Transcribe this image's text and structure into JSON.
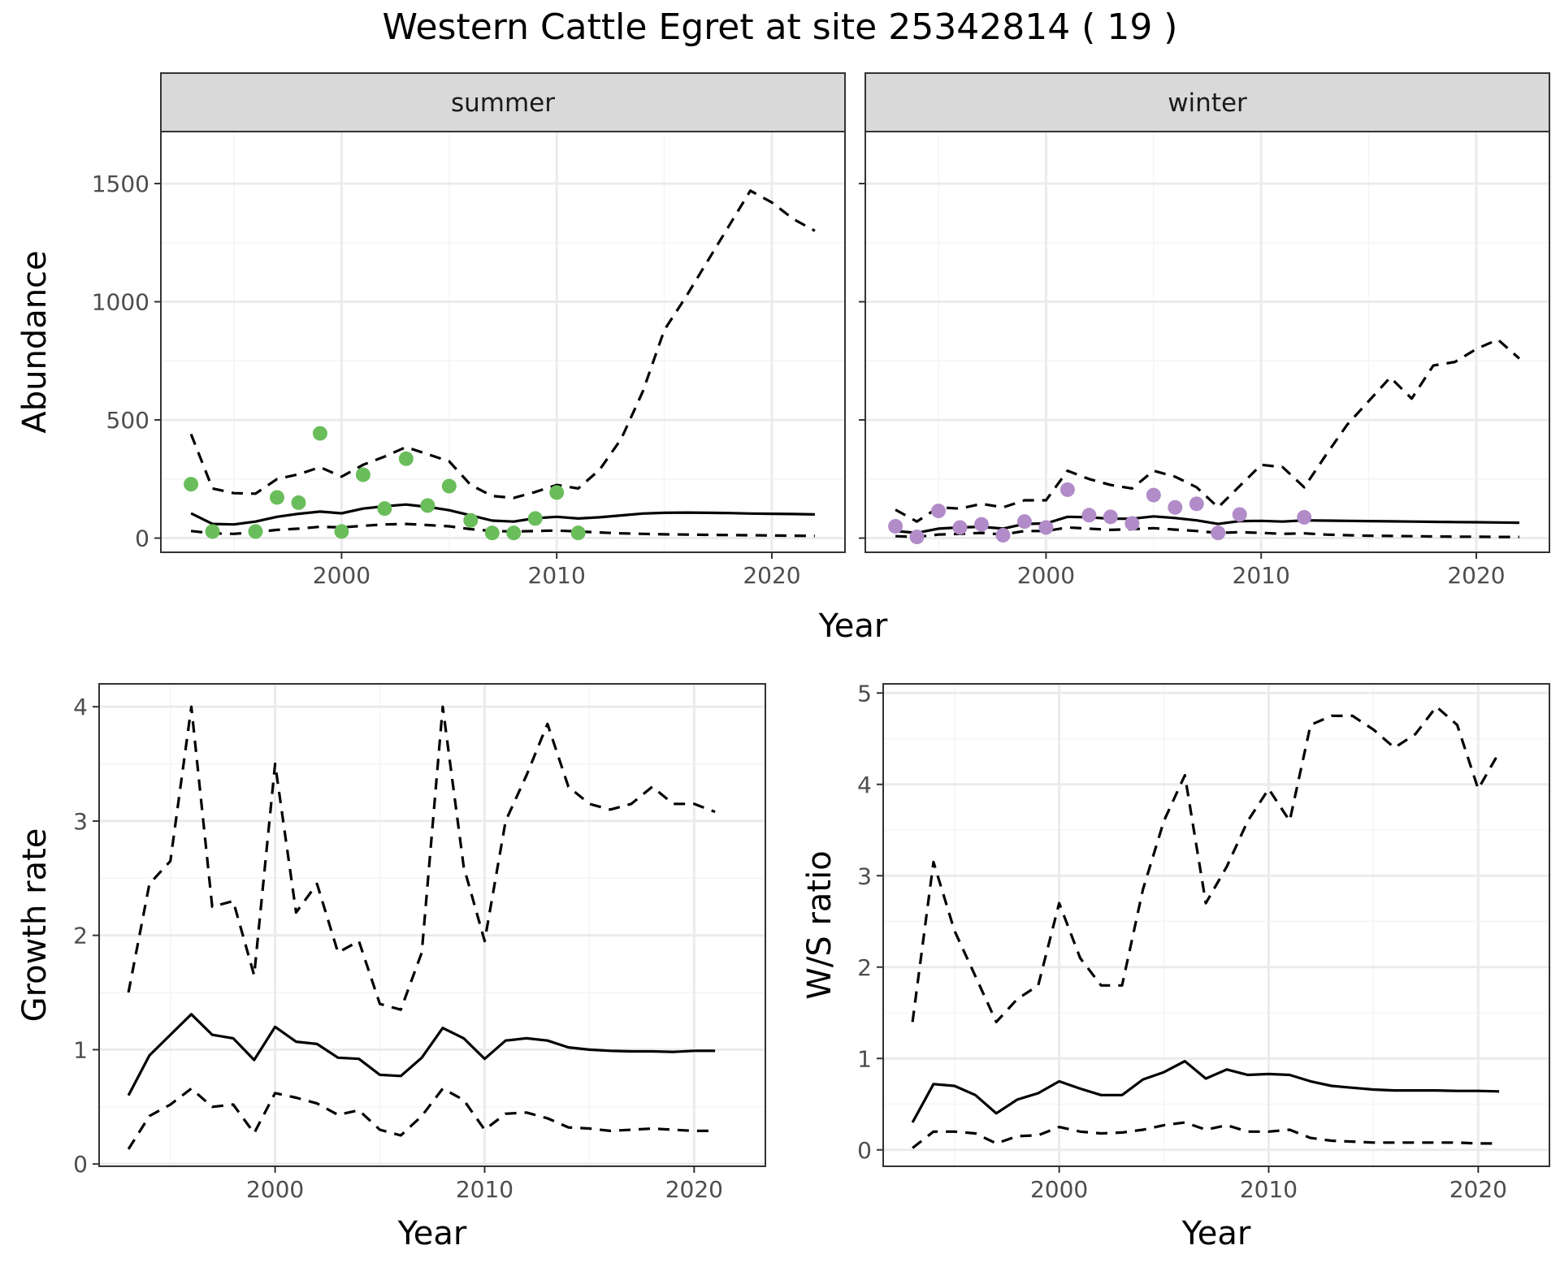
{
  "title": "Western Cattle Egret at site 25342814 ( 19 )",
  "colors": {
    "summer_points": "#6ABD5B",
    "winter_points": "#B18CC9",
    "strip_fill": "#D9D9D9",
    "grid_major": "#EBEBEB",
    "grid_minor": "#F5F5F5",
    "line": "#000000"
  },
  "chart_data": [
    {
      "type": "line",
      "id": "abundance",
      "ylabel": "Abundance",
      "xlabel": "Year",
      "xlim": [
        1991.6,
        2023.4
      ],
      "ylim": [
        -60,
        1720
      ],
      "x_ticks": [
        2000,
        2010,
        2020
      ],
      "y_ticks": [
        0,
        500,
        1000,
        1500
      ],
      "facets": [
        {
          "strip": "summer",
          "points": {
            "x": [
              1993,
              1994,
              1996,
              1997,
              1998,
              1999,
              2000,
              2001,
              2002,
              2003,
              2004,
              2005,
              2006,
              2007,
              2008,
              2009,
              2010,
              2011
            ],
            "y": [
              228,
              28,
              28,
              172,
              150,
              443,
              28,
              268,
              125,
              336,
              138,
              220,
              75,
              22,
              22,
              83,
              193,
              22
            ]
          },
          "series": [
            {
              "role": "mean",
              "dash": "solid",
              "x": [
                1993,
                1994,
                1995,
                1996,
                1997,
                1998,
                1999,
                2000,
                2001,
                2002,
                2003,
                2004,
                2005,
                2006,
                2007,
                2008,
                2009,
                2010,
                2011,
                2012,
                2013,
                2014,
                2015,
                2016,
                2017,
                2018,
                2019,
                2020,
                2021,
                2022
              ],
              "y": [
                105,
                60,
                58,
                70,
                90,
                103,
                112,
                105,
                125,
                135,
                142,
                132,
                118,
                96,
                74,
                70,
                84,
                90,
                83,
                88,
                96,
                104,
                107,
                108,
                107,
                106,
                104,
                103,
                102,
                100
              ]
            },
            {
              "role": "upper",
              "dash": "dashed",
              "x": [
                1993,
                1994,
                1995,
                1996,
                1997,
                1998,
                1999,
                2000,
                2001,
                2002,
                2003,
                2004,
                2005,
                2006,
                2007,
                2008,
                2009,
                2010,
                2011,
                2012,
                2013,
                2014,
                2015,
                2016,
                2017,
                2018,
                2019,
                2020,
                2021,
                2022
              ],
              "y": [
                440,
                210,
                190,
                188,
                250,
                270,
                300,
                260,
                310,
                345,
                385,
                355,
                325,
                225,
                178,
                170,
                195,
                225,
                210,
                290,
                420,
                620,
                880,
                1020,
                1170,
                1320,
                1470,
                1420,
                1350,
                1300
              ]
            },
            {
              "role": "lower",
              "dash": "dashed",
              "x": [
                1993,
                1994,
                1995,
                1996,
                1997,
                1998,
                1999,
                2000,
                2001,
                2002,
                2003,
                2004,
                2005,
                2006,
                2007,
                2008,
                2009,
                2010,
                2011,
                2012,
                2013,
                2014,
                2015,
                2016,
                2017,
                2018,
                2019,
                2020,
                2021,
                2022
              ],
              "y": [
                30,
                20,
                18,
                25,
                35,
                40,
                48,
                45,
                52,
                58,
                60,
                55,
                50,
                38,
                30,
                28,
                30,
                32,
                28,
                24,
                20,
                18,
                16,
                15,
                14,
                13,
                12,
                11,
                10,
                9
              ]
            }
          ]
        },
        {
          "strip": "winter",
          "points": {
            "x": [
              1993,
              1994,
              1995,
              1996,
              1997,
              1998,
              1999,
              2000,
              2001,
              2002,
              2003,
              2004,
              2005,
              2006,
              2007,
              2008,
              2009,
              2012
            ],
            "y": [
              50,
              5,
              115,
              45,
              58,
              12,
              70,
              45,
              205,
              97,
              90,
              62,
              182,
              130,
              145,
              22,
              100,
              88
            ]
          },
          "series": [
            {
              "role": "mean",
              "dash": "solid",
              "x": [
                1993,
                1994,
                1995,
                1996,
                1997,
                1998,
                1999,
                2000,
                2001,
                2002,
                2003,
                2004,
                2005,
                2006,
                2007,
                2008,
                2009,
                2010,
                2011,
                2012,
                2013,
                2014,
                2015,
                2016,
                2017,
                2018,
                2019,
                2020,
                2021,
                2022
              ],
              "y": [
                30,
                22,
                40,
                45,
                48,
                40,
                60,
                62,
                90,
                88,
                82,
                82,
                92,
                85,
                75,
                60,
                72,
                73,
                70,
                75,
                74,
                73,
                72,
                71,
                70,
                69,
                68,
                67,
                66,
                65
              ]
            },
            {
              "role": "upper",
              "dash": "dashed",
              "x": [
                1993,
                1994,
                1995,
                1996,
                1997,
                1998,
                1999,
                2000,
                2001,
                2002,
                2003,
                2004,
                2005,
                2006,
                2007,
                2008,
                2009,
                2010,
                2011,
                2012,
                2013,
                2014,
                2015,
                2016,
                2017,
                2018,
                2019,
                2020,
                2021,
                2022
              ],
              "y": [
                120,
                70,
                130,
                125,
                145,
                130,
                160,
                160,
                285,
                250,
                225,
                210,
                285,
                260,
                215,
                130,
                220,
                310,
                300,
                215,
                350,
                480,
                580,
                680,
                590,
                730,
                745,
                800,
                840,
                760
              ]
            },
            {
              "role": "lower",
              "dash": "dashed",
              "x": [
                1993,
                1994,
                1995,
                1996,
                1997,
                1998,
                1999,
                2000,
                2001,
                2002,
                2003,
                2004,
                2005,
                2006,
                2007,
                2008,
                2009,
                2010,
                2011,
                2012,
                2013,
                2014,
                2015,
                2016,
                2017,
                2018,
                2019,
                2020,
                2021,
                2022
              ],
              "y": [
                8,
                5,
                15,
                18,
                22,
                15,
                30,
                30,
                45,
                40,
                35,
                38,
                42,
                36,
                30,
                22,
                25,
                22,
                18,
                20,
                15,
                12,
                10,
                9,
                8,
                7,
                6,
                6,
                5,
                5
              ]
            }
          ]
        }
      ]
    },
    {
      "type": "line",
      "id": "growth",
      "ylabel": "Growth rate",
      "xlabel": "Year",
      "xlim": [
        1991.6,
        2023.4
      ],
      "ylim": [
        -0.02,
        4.2
      ],
      "x_ticks": [
        2000,
        2010,
        2020
      ],
      "y_ticks": [
        0,
        1,
        2,
        3,
        4
      ],
      "series": [
        {
          "role": "mean",
          "dash": "solid",
          "x": [
            1993,
            1994,
            1995,
            1996,
            1997,
            1998,
            1999,
            2000,
            2001,
            2002,
            2003,
            2004,
            2005,
            2006,
            2007,
            2008,
            2009,
            2010,
            2011,
            2012,
            2013,
            2014,
            2015,
            2016,
            2017,
            2018,
            2019,
            2020,
            2021
          ],
          "y": [
            0.6,
            0.95,
            1.13,
            1.31,
            1.13,
            1.1,
            0.91,
            1.2,
            1.07,
            1.05,
            0.93,
            0.92,
            0.78,
            0.77,
            0.93,
            1.19,
            1.1,
            0.92,
            1.08,
            1.1,
            1.08,
            1.02,
            1.0,
            0.99,
            0.985,
            0.985,
            0.98,
            0.99,
            0.99
          ]
        },
        {
          "role": "upper",
          "dash": "dashed",
          "x": [
            1993,
            1994,
            1995,
            1996,
            1997,
            1998,
            1999,
            2000,
            2001,
            2002,
            2003,
            2004,
            2005,
            2006,
            2007,
            2008,
            2009,
            2010,
            2011,
            2012,
            2013,
            2014,
            2015,
            2016,
            2017,
            2018,
            2019,
            2020,
            2021
          ],
          "y": [
            1.5,
            2.45,
            2.65,
            4.0,
            2.25,
            2.3,
            1.65,
            3.5,
            2.2,
            2.45,
            1.85,
            1.95,
            1.4,
            1.35,
            1.85,
            4.0,
            2.6,
            1.95,
            3.0,
            3.4,
            3.85,
            3.3,
            3.15,
            3.1,
            3.15,
            3.3,
            3.15,
            3.15,
            3.08
          ]
        },
        {
          "role": "lower",
          "dash": "dashed",
          "x": [
            1993,
            1994,
            1995,
            1996,
            1997,
            1998,
            1999,
            2000,
            2001,
            2002,
            2003,
            2004,
            2005,
            2006,
            2007,
            2008,
            2009,
            2010,
            2011,
            2012,
            2013,
            2014,
            2015,
            2016,
            2017,
            2018,
            2019,
            2020,
            2021
          ],
          "y": [
            0.13,
            0.42,
            0.52,
            0.66,
            0.5,
            0.52,
            0.27,
            0.62,
            0.58,
            0.53,
            0.43,
            0.47,
            0.3,
            0.25,
            0.42,
            0.66,
            0.56,
            0.3,
            0.44,
            0.45,
            0.4,
            0.32,
            0.31,
            0.29,
            0.3,
            0.31,
            0.3,
            0.29,
            0.29
          ]
        }
      ]
    },
    {
      "type": "line",
      "id": "ws_ratio",
      "ylabel": "W/S ratio",
      "xlabel": "Year",
      "xlim": [
        1991.6,
        2023.4
      ],
      "ylim": [
        -0.18,
        5.1
      ],
      "x_ticks": [
        2000,
        2010,
        2020
      ],
      "y_ticks": [
        0,
        1,
        2,
        3,
        4,
        5
      ],
      "series": [
        {
          "role": "mean",
          "dash": "solid",
          "x": [
            1993,
            1994,
            1995,
            1996,
            1997,
            1998,
            1999,
            2000,
            2001,
            2002,
            2003,
            2004,
            2005,
            2006,
            2007,
            2008,
            2009,
            2010,
            2011,
            2012,
            2013,
            2014,
            2015,
            2016,
            2017,
            2018,
            2019,
            2020,
            2021
          ],
          "y": [
            0.3,
            0.72,
            0.7,
            0.6,
            0.4,
            0.55,
            0.62,
            0.75,
            0.67,
            0.6,
            0.6,
            0.77,
            0.85,
            0.97,
            0.78,
            0.88,
            0.82,
            0.83,
            0.82,
            0.75,
            0.7,
            0.68,
            0.66,
            0.65,
            0.65,
            0.65,
            0.645,
            0.645,
            0.64
          ]
        },
        {
          "role": "upper",
          "dash": "dashed",
          "x": [
            1993,
            1994,
            1995,
            1996,
            1997,
            1998,
            1999,
            2000,
            2001,
            2002,
            2003,
            2004,
            2005,
            2006,
            2007,
            2008,
            2009,
            2010,
            2011,
            2012,
            2013,
            2014,
            2015,
            2016,
            2017,
            2018,
            2019,
            2020,
            2021
          ],
          "y": [
            1.4,
            3.15,
            2.4,
            1.9,
            1.4,
            1.65,
            1.8,
            2.7,
            2.1,
            1.8,
            1.8,
            2.85,
            3.6,
            4.1,
            2.7,
            3.1,
            3.6,
            3.95,
            3.6,
            4.65,
            4.75,
            4.75,
            4.6,
            4.4,
            4.55,
            4.85,
            4.65,
            3.95,
            4.35
          ]
        },
        {
          "role": "lower",
          "dash": "dashed",
          "x": [
            1993,
            1994,
            1995,
            1996,
            1997,
            1998,
            1999,
            2000,
            2001,
            2002,
            2003,
            2004,
            2005,
            2006,
            2007,
            2008,
            2009,
            2010,
            2011,
            2012,
            2013,
            2014,
            2015,
            2016,
            2017,
            2018,
            2019,
            2020,
            2021
          ],
          "y": [
            0.02,
            0.2,
            0.2,
            0.18,
            0.07,
            0.15,
            0.16,
            0.25,
            0.2,
            0.18,
            0.19,
            0.22,
            0.27,
            0.3,
            0.22,
            0.27,
            0.2,
            0.2,
            0.22,
            0.13,
            0.1,
            0.09,
            0.08,
            0.08,
            0.08,
            0.08,
            0.08,
            0.07,
            0.07
          ]
        }
      ]
    }
  ]
}
